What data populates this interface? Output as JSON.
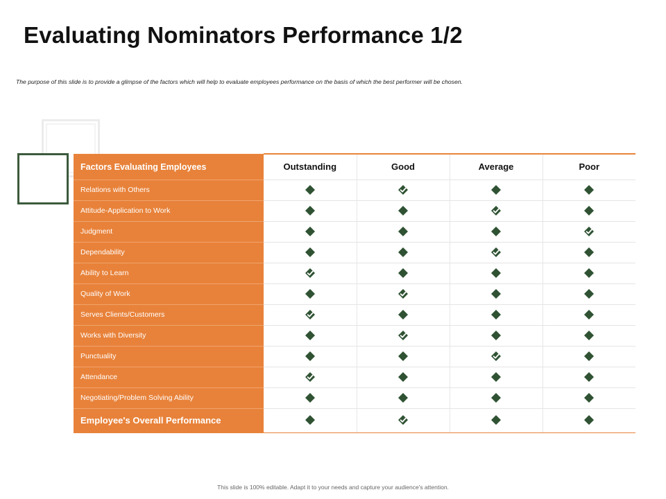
{
  "slide": {
    "title": "Evaluating Nominators Performance 1/2",
    "subtitle": "The purpose of this slide is to provide a glimpse of the factors which will help to evaluate employees performance on the basis of which the best performer will be chosen.",
    "footer": "This slide is 100% editable. Adapt it to your needs and capture your audience's attention."
  },
  "colors": {
    "accent_orange": "#e8823a",
    "mark_green": "#2f5233",
    "frame_green": "#3b5a3c"
  },
  "icons": {
    "unchecked": "diamond-icon",
    "checked": "diamond-check-icon"
  },
  "table": {
    "header": {
      "factor_label": "Factors Evaluating Employees",
      "ratings": [
        "Outstanding",
        "Good",
        "Average",
        "Poor"
      ]
    },
    "rows": [
      {
        "factor": "Relations with Others",
        "selected": "Good"
      },
      {
        "factor": "Attitude-Application to Work",
        "selected": "Average"
      },
      {
        "factor": "Judgment",
        "selected": "Poor"
      },
      {
        "factor": "Dependability",
        "selected": "Average"
      },
      {
        "factor": "Ability to Learn",
        "selected": "Outstanding"
      },
      {
        "factor": "Quality of Work",
        "selected": "Good"
      },
      {
        "factor": "Serves Clients/Customers",
        "selected": "Outstanding"
      },
      {
        "factor": "Works with Diversity",
        "selected": "Good"
      },
      {
        "factor": "Punctuality",
        "selected": "Average"
      },
      {
        "factor": "Attendance",
        "selected": "Outstanding"
      },
      {
        "factor": "Negotiating/Problem Solving Ability",
        "selected": ""
      },
      {
        "factor": "Employee's Overall Performance",
        "selected": "Good"
      }
    ]
  }
}
